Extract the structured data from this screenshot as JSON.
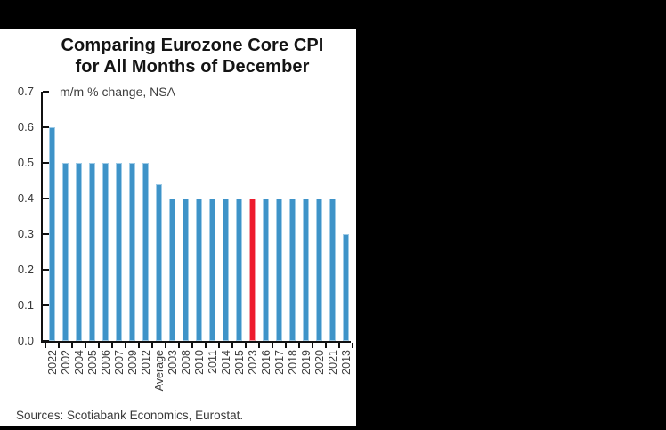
{
  "chart": {
    "title_line1": "Comparing Eurozone Core CPI",
    "title_line2": "for All Months of December",
    "subtitle": "m/m % change, NSA",
    "source": "Sources: Scotiabank Economics, Eurostat."
  },
  "chart_data": {
    "type": "bar",
    "title": "Comparing Eurozone Core CPI for All Months of December",
    "subtitle": "m/m % change, NSA",
    "categories": [
      "2022",
      "2002",
      "2004",
      "2005",
      "2006",
      "2007",
      "2009",
      "2012",
      "Average",
      "2003",
      "2008",
      "2010",
      "2011",
      "2014",
      "2015",
      "2023",
      "2016",
      "2017",
      "2018",
      "2019",
      "2020",
      "2021",
      "2013"
    ],
    "values": [
      0.6,
      0.5,
      0.5,
      0.5,
      0.5,
      0.5,
      0.5,
      0.5,
      0.44,
      0.4,
      0.4,
      0.4,
      0.4,
      0.4,
      0.4,
      0.4,
      0.4,
      0.4,
      0.4,
      0.4,
      0.4,
      0.4,
      0.3
    ],
    "highlight_category": "2023",
    "bar_color": "#3e93c8",
    "highlight_color": "#ee1b2d",
    "ylabel": "m/m % change, NSA",
    "ylim": [
      0.0,
      0.7
    ],
    "ytick_labels": [
      "0.0",
      "0.1",
      "0.2",
      "0.3",
      "0.4",
      "0.5",
      "0.6",
      "0.7"
    ],
    "grid": false,
    "legend": false,
    "source": "Sources: Scotiabank Economics, Eurostat."
  }
}
